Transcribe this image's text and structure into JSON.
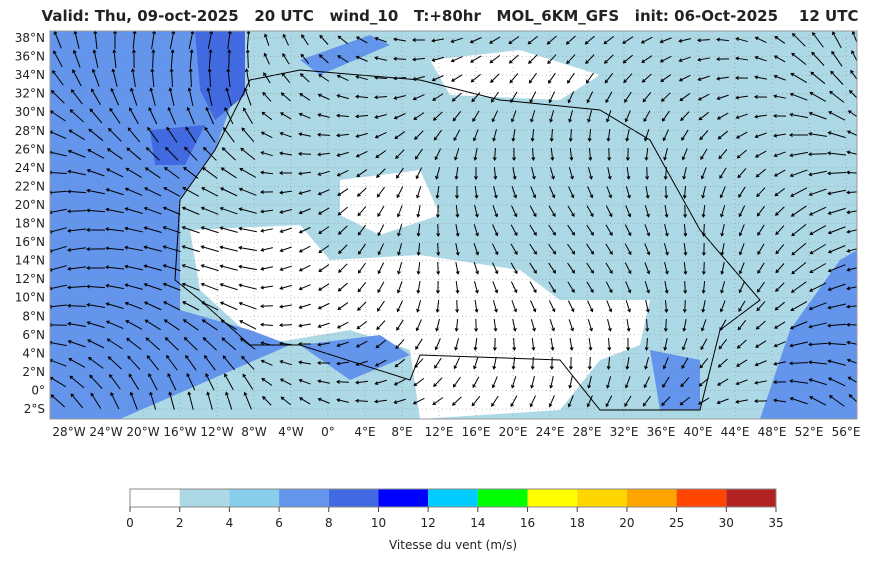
{
  "header": {
    "title": "Valid: Thu, 09-oct-2025   20 UTC   wind_10   T:+80hr   MOL_6KM_GFS   init: 06-Oct-2025    12 UTC"
  },
  "map": {
    "lat_labels": [
      "38°N",
      "36°N",
      "34°N",
      "32°N",
      "30°N",
      "28°N",
      "26°N",
      "24°N",
      "22°N",
      "20°N",
      "18°N",
      "16°N",
      "14°N",
      "12°N",
      "10°N",
      "8°N",
      "6°N",
      "4°N",
      "2°N",
      "0°",
      "2°S"
    ],
    "lon_labels": [
      "28°W",
      "24°W",
      "20°W",
      "16°W",
      "12°W",
      "8°W",
      "4°W",
      "0°",
      "4°E",
      "8°E",
      "12°E",
      "16°E",
      "20°E",
      "24°E",
      "28°E",
      "32°E",
      "36°E",
      "40°E",
      "44°E",
      "48°E",
      "52°E",
      "56°E"
    ]
  },
  "colorbar": {
    "ticks": [
      "0",
      "2",
      "4",
      "6",
      "8",
      "10",
      "12",
      "14",
      "16",
      "18",
      "20",
      "25",
      "30",
      "35"
    ],
    "colors": [
      "#ffffff",
      "#add8e6",
      "#87ceeb",
      "#6495ed",
      "#4169e1",
      "#0000ff",
      "#00ccff",
      "#00ff00",
      "#ffff00",
      "#ffd700",
      "#ffa500",
      "#ff4500",
      "#b22222"
    ],
    "label": "Vitesse du vent (m/s)"
  }
}
